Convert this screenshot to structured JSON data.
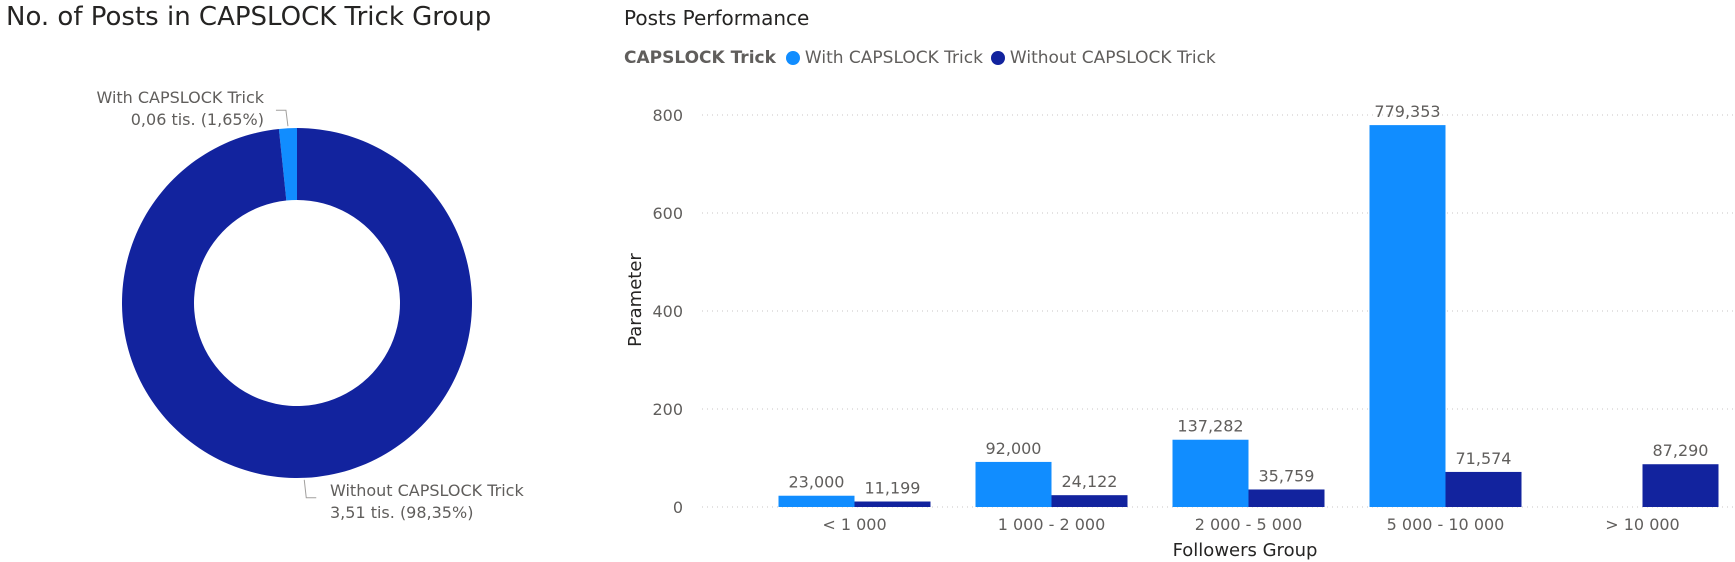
{
  "donut": {
    "title": "No. of Posts in CAPSLOCK Trick Group",
    "slices": [
      {
        "name": "With CAPSLOCK Trick",
        "value": 1.65,
        "label_value": "0,06 tis. (1,65%)",
        "color": "#118DFF"
      },
      {
        "name": "Without CAPSLOCK Trick",
        "value": 98.35,
        "label_value": "3,51 tis. (98,35%)",
        "color": "#12239E"
      }
    ]
  },
  "bar": {
    "title": "Posts Performance",
    "legend_title": "CAPSLOCK Trick"
  },
  "chart_data": [
    {
      "type": "pie",
      "title": "No. of Posts in CAPSLOCK Trick Group",
      "categories": [
        "With CAPSLOCK Trick",
        "Without CAPSLOCK Trick"
      ],
      "values": [
        1.65,
        98.35
      ],
      "value_labels": [
        "0,06 tis. (1,65%)",
        "3,51 tis. (98,35%)"
      ],
      "colors": [
        "#118DFF",
        "#12239E"
      ]
    },
    {
      "type": "bar",
      "title": "Posts Performance",
      "xlabel": "Followers Group",
      "ylabel": "Parameter",
      "ylim": [
        0,
        800
      ],
      "yticks": [
        0,
        200,
        400,
        600,
        800
      ],
      "grid": true,
      "legend_title": "CAPSLOCK Trick",
      "legend_position": "top-left",
      "categories": [
        "< 1 000",
        "1 000 - 2 000",
        "2 000 - 5 000",
        "5 000 - 10 000",
        "> 10 000"
      ],
      "series": [
        {
          "name": "With CAPSLOCK Trick",
          "color": "#118DFF",
          "values": [
            23.0,
            92.0,
            137.282,
            779.353,
            null
          ],
          "labels": [
            "23,000",
            "92,000",
            "137,282",
            "779,353",
            ""
          ]
        },
        {
          "name": "Without CAPSLOCK Trick",
          "color": "#12239E",
          "values": [
            11.199,
            24.122,
            35.759,
            71.574,
            87.29
          ],
          "labels": [
            "11,199",
            "24,122",
            "35,759",
            "71,574",
            "87,290"
          ]
        }
      ]
    }
  ]
}
